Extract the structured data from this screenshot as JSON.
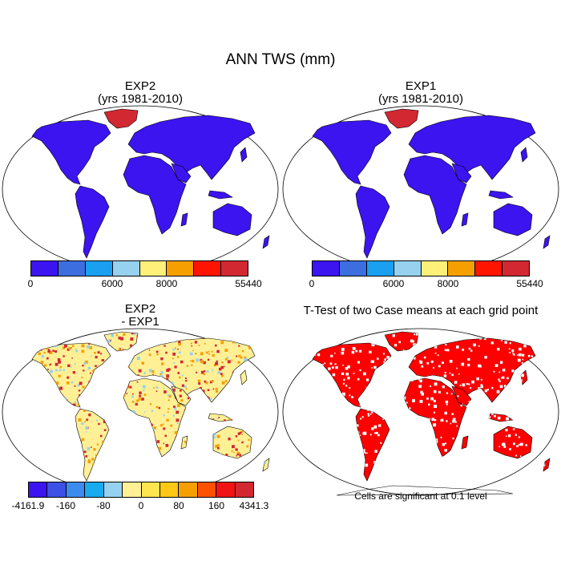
{
  "title": "ANN TWS (mm)",
  "panels": {
    "tl": {
      "line1": "EXP2",
      "line2": "(yrs 1981-2010)"
    },
    "tr": {
      "line1": "EXP1",
      "line2": "(yrs 1981-2010)"
    },
    "bl": {
      "line1": "EXP2",
      "line2": "- EXP1"
    },
    "br": {
      "line1": "T-Test of two Case means at each grid point"
    }
  },
  "colorbar_top": {
    "colors": [
      "#3c14f0",
      "#3c6ee0",
      "#19a0f0",
      "#96d2f0",
      "#fff07a",
      "#f5a000",
      "#ff1400",
      "#d22832"
    ],
    "labels": {
      "l0": "0",
      "l1": "6000",
      "l2": "8000",
      "l3": "55440"
    }
  },
  "colorbar_bottom": {
    "colors": [
      "#3c14f0",
      "#3c50e6",
      "#3c8cf0",
      "#19aaf0",
      "#96d2f0",
      "#fff096",
      "#ffe650",
      "#ffc814",
      "#f5a000",
      "#ff5000",
      "#f01414",
      "#d22832"
    ],
    "labels": {
      "l0": "-4161.9",
      "l1": "-160",
      "l2": "-80",
      "l3": "0",
      "l4": "80",
      "l5": "160",
      "l6": "4341.3"
    }
  },
  "note": "Cells are significant at 0.1 level",
  "map_colors": {
    "land_main": "#3c14f0",
    "greenland": "#d22832",
    "diff_base": "#fff096",
    "diff_warm": "#f5a000",
    "diff_hot": "#d22832",
    "diff_cool": "#96d2f0",
    "ttest": "#ff0000"
  }
}
